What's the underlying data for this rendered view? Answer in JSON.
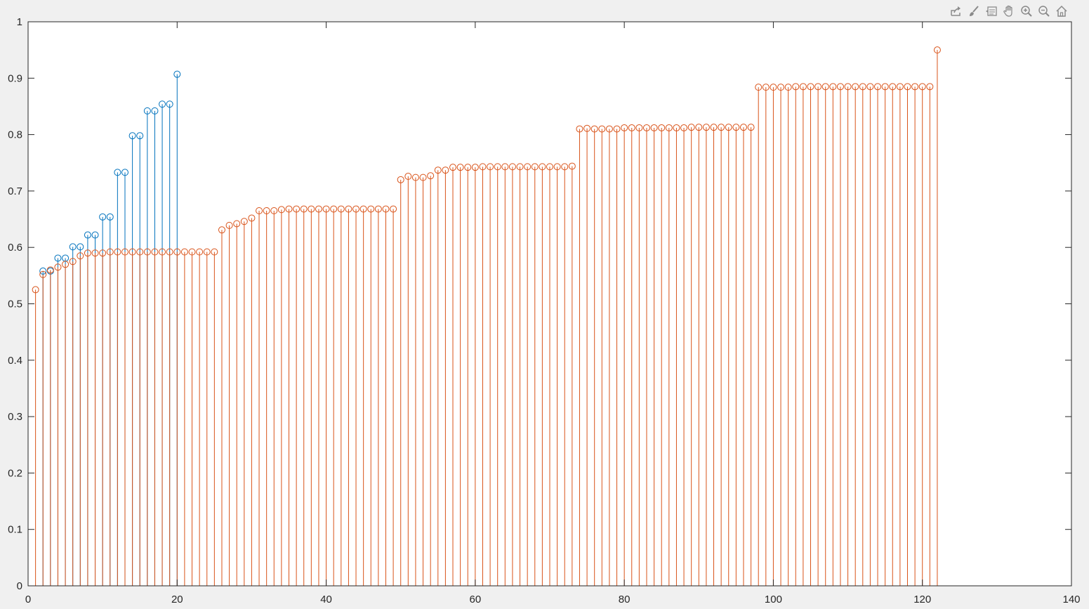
{
  "toolbar": {
    "buttons": [
      {
        "name": "export-icon"
      },
      {
        "name": "brush-icon"
      },
      {
        "name": "datatip-icon"
      },
      {
        "name": "pan-icon"
      },
      {
        "name": "zoom-in-icon"
      },
      {
        "name": "zoom-out-icon"
      },
      {
        "name": "home-icon"
      }
    ]
  },
  "chart_data": {
    "type": "stem",
    "xlim": [
      0,
      140
    ],
    "ylim": [
      0,
      1
    ],
    "xticks": [
      "0",
      "20",
      "40",
      "60",
      "80",
      "100",
      "120",
      "140"
    ],
    "yticks": [
      "0",
      "0.1",
      "0.2",
      "0.3",
      "0.4",
      "0.5",
      "0.6",
      "0.7",
      "0.8",
      "0.9",
      "1"
    ],
    "grid": false,
    "series": [
      {
        "color": "#0072bd",
        "x": [
          2,
          3,
          4,
          5,
          6,
          7,
          8,
          9,
          10,
          11,
          12,
          13,
          14,
          15,
          16,
          17,
          18,
          19,
          20
        ],
        "values": [
          0.558,
          0.558,
          0.581,
          0.581,
          0.601,
          0.601,
          0.622,
          0.622,
          0.654,
          0.654,
          0.733,
          0.733,
          0.798,
          0.798,
          0.842,
          0.842,
          0.854,
          0.854,
          0.907
        ]
      },
      {
        "color": "#d95319",
        "x_start": 1,
        "values": [
          0.525,
          0.552,
          0.56,
          0.565,
          0.57,
          0.575,
          0.585,
          0.59,
          0.59,
          0.59,
          0.592,
          0.592,
          0.592,
          0.592,
          0.592,
          0.592,
          0.592,
          0.592,
          0.592,
          0.592,
          0.592,
          0.592,
          0.592,
          0.592,
          0.592,
          0.631,
          0.639,
          0.642,
          0.646,
          0.652,
          0.665,
          0.665,
          0.665,
          0.667,
          0.668,
          0.668,
          0.668,
          0.668,
          0.668,
          0.668,
          0.668,
          0.668,
          0.668,
          0.668,
          0.668,
          0.668,
          0.668,
          0.668,
          0.668,
          0.72,
          0.726,
          0.724,
          0.724,
          0.727,
          0.737,
          0.737,
          0.742,
          0.742,
          0.742,
          0.742,
          0.743,
          0.743,
          0.743,
          0.743,
          0.743,
          0.743,
          0.743,
          0.743,
          0.743,
          0.743,
          0.743,
          0.743,
          0.744,
          0.81,
          0.811,
          0.81,
          0.81,
          0.81,
          0.81,
          0.812,
          0.812,
          0.812,
          0.812,
          0.812,
          0.812,
          0.812,
          0.812,
          0.812,
          0.813,
          0.813,
          0.813,
          0.813,
          0.813,
          0.813,
          0.813,
          0.813,
          0.813,
          0.884,
          0.884,
          0.884,
          0.884,
          0.884,
          0.885,
          0.885,
          0.885,
          0.885,
          0.885,
          0.885,
          0.885,
          0.885,
          0.885,
          0.885,
          0.885,
          0.885,
          0.885,
          0.885,
          0.885,
          0.885,
          0.885,
          0.885,
          0.885,
          0.95
        ]
      }
    ]
  }
}
